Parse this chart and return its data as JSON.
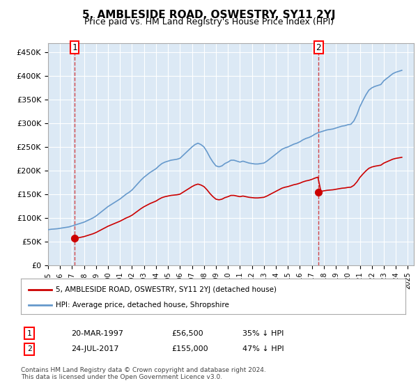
{
  "title": "5, AMBLESIDE ROAD, OSWESTRY, SY11 2YJ",
  "subtitle": "Price paid vs. HM Land Registry's House Price Index (HPI)",
  "background_color": "#dce9f5",
  "plot_bg_color": "#dce9f5",
  "hpi_color": "#6699cc",
  "price_color": "#cc0000",
  "ylim": [
    0,
    470000
  ],
  "yticks": [
    0,
    50000,
    100000,
    150000,
    200000,
    250000,
    300000,
    350000,
    400000,
    450000
  ],
  "ytick_labels": [
    "£0",
    "£50K",
    "£100K",
    "£150K",
    "£200K",
    "£250K",
    "£300K",
    "£350K",
    "£400K",
    "£450K"
  ],
  "xlim_start": 1995.0,
  "xlim_end": 2025.5,
  "xticks": [
    1995,
    1996,
    1997,
    1998,
    1999,
    2000,
    2001,
    2002,
    2003,
    2004,
    2005,
    2006,
    2007,
    2008,
    2009,
    2010,
    2011,
    2012,
    2013,
    2014,
    2015,
    2016,
    2017,
    2018,
    2019,
    2020,
    2021,
    2022,
    2023,
    2024,
    2025
  ],
  "sale1_x": 1997.22,
  "sale1_y": 56500,
  "sale1_label": "1",
  "sale2_x": 2017.56,
  "sale2_y": 155000,
  "sale2_label": "2",
  "legend_line1": "5, AMBLESIDE ROAD, OSWESTRY, SY11 2YJ (detached house)",
  "legend_line2": "HPI: Average price, detached house, Shropshire",
  "table_row1": "1    20-MAR-1997         £56,500        35% ↓ HPI",
  "table_row2": "2    24-JUL-2017         £155,000       47% ↓ HPI",
  "footer": "Contains HM Land Registry data © Crown copyright and database right 2024.\nThis data is licensed under the Open Government Licence v3.0.",
  "hpi_data_x": [
    1995.0,
    1995.25,
    1995.5,
    1995.75,
    1996.0,
    1996.25,
    1996.5,
    1996.75,
    1997.0,
    1997.25,
    1997.5,
    1997.75,
    1998.0,
    1998.25,
    1998.5,
    1998.75,
    1999.0,
    1999.25,
    1999.5,
    1999.75,
    2000.0,
    2000.25,
    2000.5,
    2000.75,
    2001.0,
    2001.25,
    2001.5,
    2001.75,
    2002.0,
    2002.25,
    2002.5,
    2002.75,
    2003.0,
    2003.25,
    2003.5,
    2003.75,
    2004.0,
    2004.25,
    2004.5,
    2004.75,
    2005.0,
    2005.25,
    2005.5,
    2005.75,
    2006.0,
    2006.25,
    2006.5,
    2006.75,
    2007.0,
    2007.25,
    2007.5,
    2007.75,
    2008.0,
    2008.25,
    2008.5,
    2008.75,
    2009.0,
    2009.25,
    2009.5,
    2009.75,
    2010.0,
    2010.25,
    2010.5,
    2010.75,
    2011.0,
    2011.25,
    2011.5,
    2011.75,
    2012.0,
    2012.25,
    2012.5,
    2012.75,
    2013.0,
    2013.25,
    2013.5,
    2013.75,
    2014.0,
    2014.25,
    2014.5,
    2014.75,
    2015.0,
    2015.25,
    2015.5,
    2015.75,
    2016.0,
    2016.25,
    2016.5,
    2016.75,
    2017.0,
    2017.25,
    2017.5,
    2017.75,
    2018.0,
    2018.25,
    2018.5,
    2018.75,
    2019.0,
    2019.25,
    2019.5,
    2019.75,
    2020.0,
    2020.25,
    2020.5,
    2020.75,
    2021.0,
    2021.25,
    2021.5,
    2021.75,
    2022.0,
    2022.25,
    2022.5,
    2022.75,
    2023.0,
    2023.25,
    2023.5,
    2023.75,
    2024.0,
    2024.25,
    2024.5
  ],
  "hpi_data_y": [
    75000,
    76000,
    76500,
    77000,
    78000,
    79000,
    80000,
    81000,
    83000,
    85000,
    87000,
    89000,
    91000,
    94000,
    97000,
    100000,
    104000,
    109000,
    114000,
    119000,
    124000,
    128000,
    132000,
    136000,
    140000,
    145000,
    150000,
    154000,
    159000,
    166000,
    173000,
    180000,
    186000,
    191000,
    196000,
    200000,
    204000,
    210000,
    215000,
    218000,
    220000,
    222000,
    223000,
    224000,
    226000,
    232000,
    238000,
    244000,
    250000,
    255000,
    258000,
    255000,
    250000,
    240000,
    228000,
    218000,
    210000,
    208000,
    210000,
    215000,
    218000,
    222000,
    222000,
    220000,
    218000,
    220000,
    218000,
    216000,
    215000,
    214000,
    214000,
    215000,
    216000,
    220000,
    225000,
    230000,
    235000,
    240000,
    245000,
    248000,
    250000,
    253000,
    256000,
    258000,
    261000,
    265000,
    268000,
    270000,
    273000,
    277000,
    280000,
    282000,
    284000,
    286000,
    287000,
    288000,
    290000,
    292000,
    294000,
    295000,
    297000,
    298000,
    305000,
    318000,
    335000,
    348000,
    360000,
    370000,
    375000,
    378000,
    380000,
    382000,
    390000,
    395000,
    400000,
    405000,
    408000,
    410000,
    412000
  ],
  "price_data_x": [
    1997.22,
    2017.56
  ],
  "price_data_y": [
    56500,
    155000
  ]
}
